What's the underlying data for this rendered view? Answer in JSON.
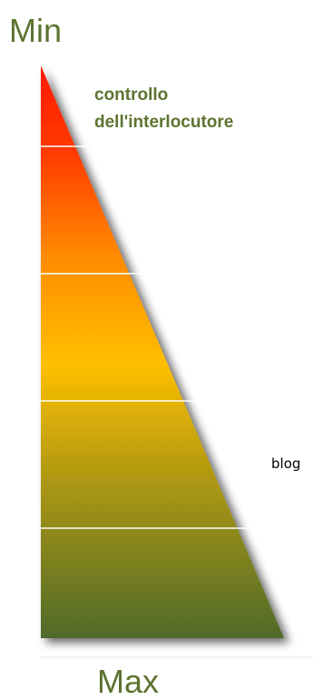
{
  "scale": {
    "top_label": "Min",
    "bottom_label": "Max"
  },
  "annotation": {
    "line1": "controllo",
    "line2": "dell'interlocutore"
  },
  "side_label": "blog",
  "colors": {
    "top": "#ff1a00",
    "upper_mid": "#ff7a00",
    "middle": "#ffb800",
    "lower_mid": "#b39a10",
    "bottom": "#4f6a2a",
    "text_green": "#5d7330",
    "divider": "#ffffff"
  },
  "segments": 5
}
